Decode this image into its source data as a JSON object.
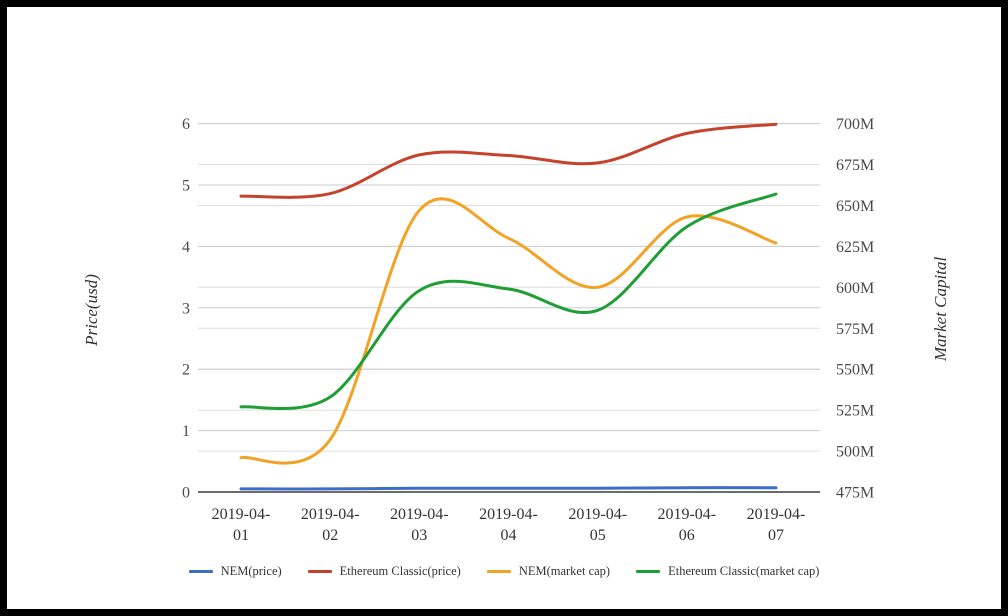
{
  "colors": {
    "background": "#ffffff",
    "frame_border": "#000000",
    "gridline_major": "#cccccc",
    "gridline_minor": "#dedede",
    "axis_line": "#3c3c3c",
    "tick_text": "#4a4a4a",
    "label_text": "#333333"
  },
  "chart_data": {
    "type": "line",
    "title": "",
    "x": [
      "2019-04-01",
      "2019-04-02",
      "2019-04-03",
      "2019-04-04",
      "2019-04-05",
      "2019-04-06",
      "2019-04-07"
    ],
    "left_axis": {
      "label": "Price(usd)",
      "min": 0,
      "max": 6,
      "tick_values": [
        0,
        1,
        2,
        3,
        4,
        5,
        6
      ],
      "tick_labels": [
        "0",
        "1",
        "2",
        "3",
        "4",
        "5",
        "6"
      ]
    },
    "right_axis": {
      "label": "Market Capital",
      "unit": "M",
      "min": 475,
      "max": 700,
      "tick_values": [
        475,
        500,
        525,
        550,
        575,
        600,
        625,
        650,
        675,
        700
      ],
      "tick_labels": [
        "475M",
        "500M",
        "525M",
        "550M",
        "575M",
        "600M",
        "625M",
        "650M",
        "675M",
        "700M"
      ]
    },
    "grid": true,
    "legend_position": "bottom",
    "curve": "smooth",
    "series": [
      {
        "name": "NEM(price)",
        "yaxis": "left",
        "color": "#3E6CC7",
        "values": [
          0.05,
          0.05,
          0.06,
          0.06,
          0.06,
          0.07,
          0.07
        ]
      },
      {
        "name": "Ethereum Classic(price)",
        "yaxis": "left",
        "color": "#C5432C",
        "values": [
          4.82,
          4.86,
          5.49,
          5.48,
          5.36,
          5.84,
          5.99
        ]
      },
      {
        "name": "NEM(market cap)",
        "yaxis": "right",
        "color": "#F2A325",
        "values": [
          496,
          507,
          647,
          630,
          600,
          643,
          627
        ]
      },
      {
        "name": "Ethereum Classic(market cap)",
        "yaxis": "right",
        "color": "#1E9E34",
        "values": [
          527,
          533,
          598,
          599,
          586,
          637,
          657
        ]
      }
    ]
  }
}
